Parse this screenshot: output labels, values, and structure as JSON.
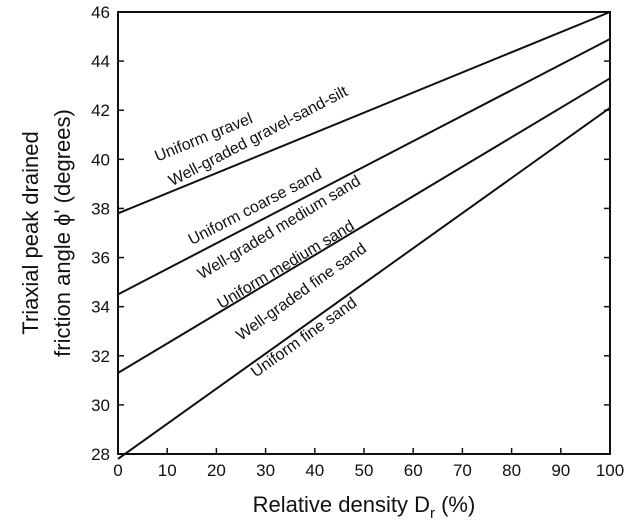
{
  "chart_data": {
    "type": "line",
    "xlabel": "Relative density D",
    "xlabel_sub": "r",
    "xlabel_unit": " (%)",
    "ylabel_line1": "Triaxial peak drained",
    "ylabel_line2": "friction angle ϕ' (degrees)",
    "xlim": [
      0,
      100
    ],
    "ylim": [
      28,
      46
    ],
    "x_ticks": [
      0,
      10,
      20,
      30,
      40,
      50,
      60,
      70,
      80,
      90,
      100
    ],
    "y_ticks": [
      28,
      30,
      32,
      34,
      36,
      38,
      40,
      42,
      44,
      46
    ],
    "grid": false,
    "lines": [
      {
        "values": [
          [
            0,
            37.8
          ],
          [
            100,
            46.0
          ]
        ]
      },
      {
        "values": [
          [
            0,
            34.5
          ],
          [
            100,
            44.9
          ]
        ]
      },
      {
        "values": [
          [
            0,
            31.3
          ],
          [
            100,
            43.3
          ]
        ]
      },
      {
        "values": [
          [
            0,
            27.8
          ],
          [
            100,
            42.1
          ]
        ]
      }
    ],
    "labels": [
      {
        "text": "Uniform gravel",
        "x": 8,
        "y": 39.9
      },
      {
        "text": "Well-graded gravel-sand-silt",
        "x": 11,
        "y": 38.9
      },
      {
        "text": "Uniform coarse sand",
        "x": 15,
        "y": 36.5
      },
      {
        "text": "Well-graded medium sand",
        "x": 17,
        "y": 35.1
      },
      {
        "text": "Uniform medium sand",
        "x": 21,
        "y": 33.9
      },
      {
        "text": "Well-graded fine sand",
        "x": 25,
        "y": 32.6
      },
      {
        "text": "Uniform fine sand",
        "x": 28,
        "y": 31.1
      }
    ]
  }
}
